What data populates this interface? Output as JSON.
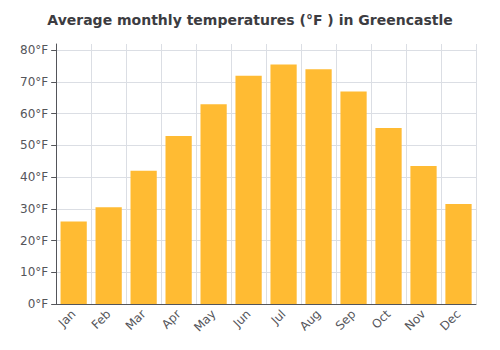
{
  "chart_data": {
    "type": "bar",
    "title": "Average monthly temperatures (°F ) in Greencastle",
    "categories": [
      "Jan",
      "Feb",
      "Mar",
      "Apr",
      "May",
      "Jun",
      "Jul",
      "Aug",
      "Sep",
      "Oct",
      "Nov",
      "Dec"
    ],
    "values": [
      26,
      30.5,
      42,
      53,
      63,
      72,
      75.5,
      74,
      67,
      55.5,
      43.5,
      31.5
    ],
    "color": "#FFBB33",
    "ylim": [
      0,
      82
    ],
    "yticks": [
      {
        "value": 0,
        "label": "0°F"
      },
      {
        "value": 10,
        "label": "10°F"
      },
      {
        "value": 20,
        "label": "20°F"
      },
      {
        "value": 30,
        "label": "30°F"
      },
      {
        "value": 40,
        "label": "40°F"
      },
      {
        "value": 50,
        "label": "50°F"
      },
      {
        "value": 60,
        "label": "60°F"
      },
      {
        "value": 70,
        "label": "70°F"
      },
      {
        "value": 80,
        "label": "80°F"
      }
    ],
    "grid": true
  }
}
